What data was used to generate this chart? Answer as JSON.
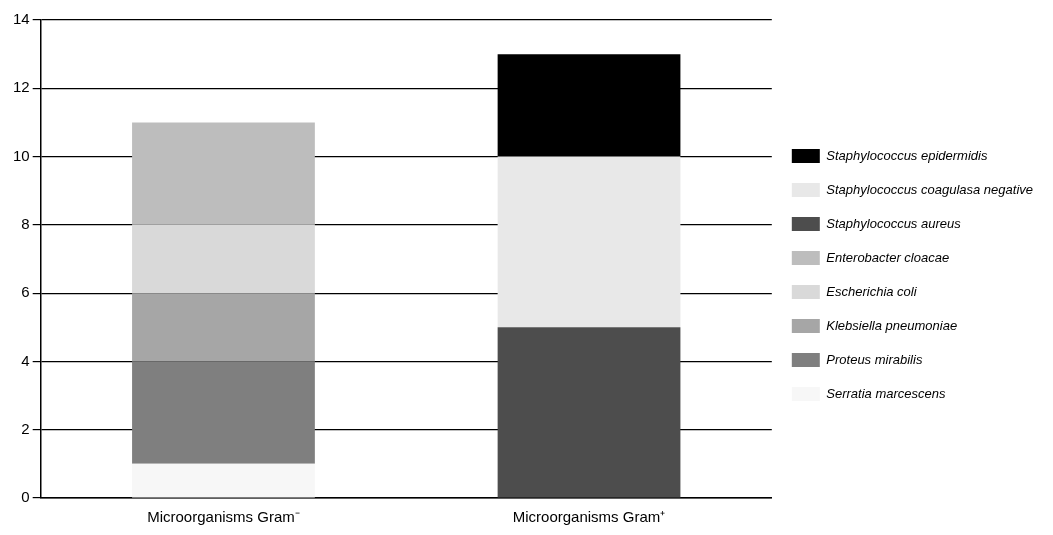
{
  "chart_data": {
    "type": "bar",
    "stacked": true,
    "categories": [
      "Microorganisms Gram⁻",
      "Microorganisms Gram⁺"
    ],
    "series": [
      {
        "name": "Serratia marcescens",
        "color": "#f7f7f7",
        "values": [
          1,
          null
        ]
      },
      {
        "name": "Proteus mirabilis",
        "color": "#7f7f7f",
        "values": [
          3,
          null
        ]
      },
      {
        "name": "Klebsiella pneumoniae",
        "color": "#a6a6a6",
        "values": [
          2,
          null
        ]
      },
      {
        "name": "Escherichia coli",
        "color": "#d9d9d9",
        "values": [
          2,
          null
        ]
      },
      {
        "name": "Enterobacter cloacae",
        "color": "#bdbdbd",
        "values": [
          3,
          null
        ]
      },
      {
        "name": "Staphylococcus aureus",
        "color": "#4d4d4d",
        "values": [
          null,
          5
        ]
      },
      {
        "name": "Staphylococcus coagulasa negative",
        "color": "#e8e8e8",
        "values": [
          null,
          5
        ]
      },
      {
        "name": "Staphylococcus epidermidis",
        "color": "#000000",
        "values": [
          null,
          3
        ]
      }
    ],
    "ylim": [
      0,
      14
    ],
    "yticks": [
      0,
      2,
      4,
      6,
      8,
      10,
      12,
      14
    ],
    "grid": "y",
    "legend": "right"
  }
}
